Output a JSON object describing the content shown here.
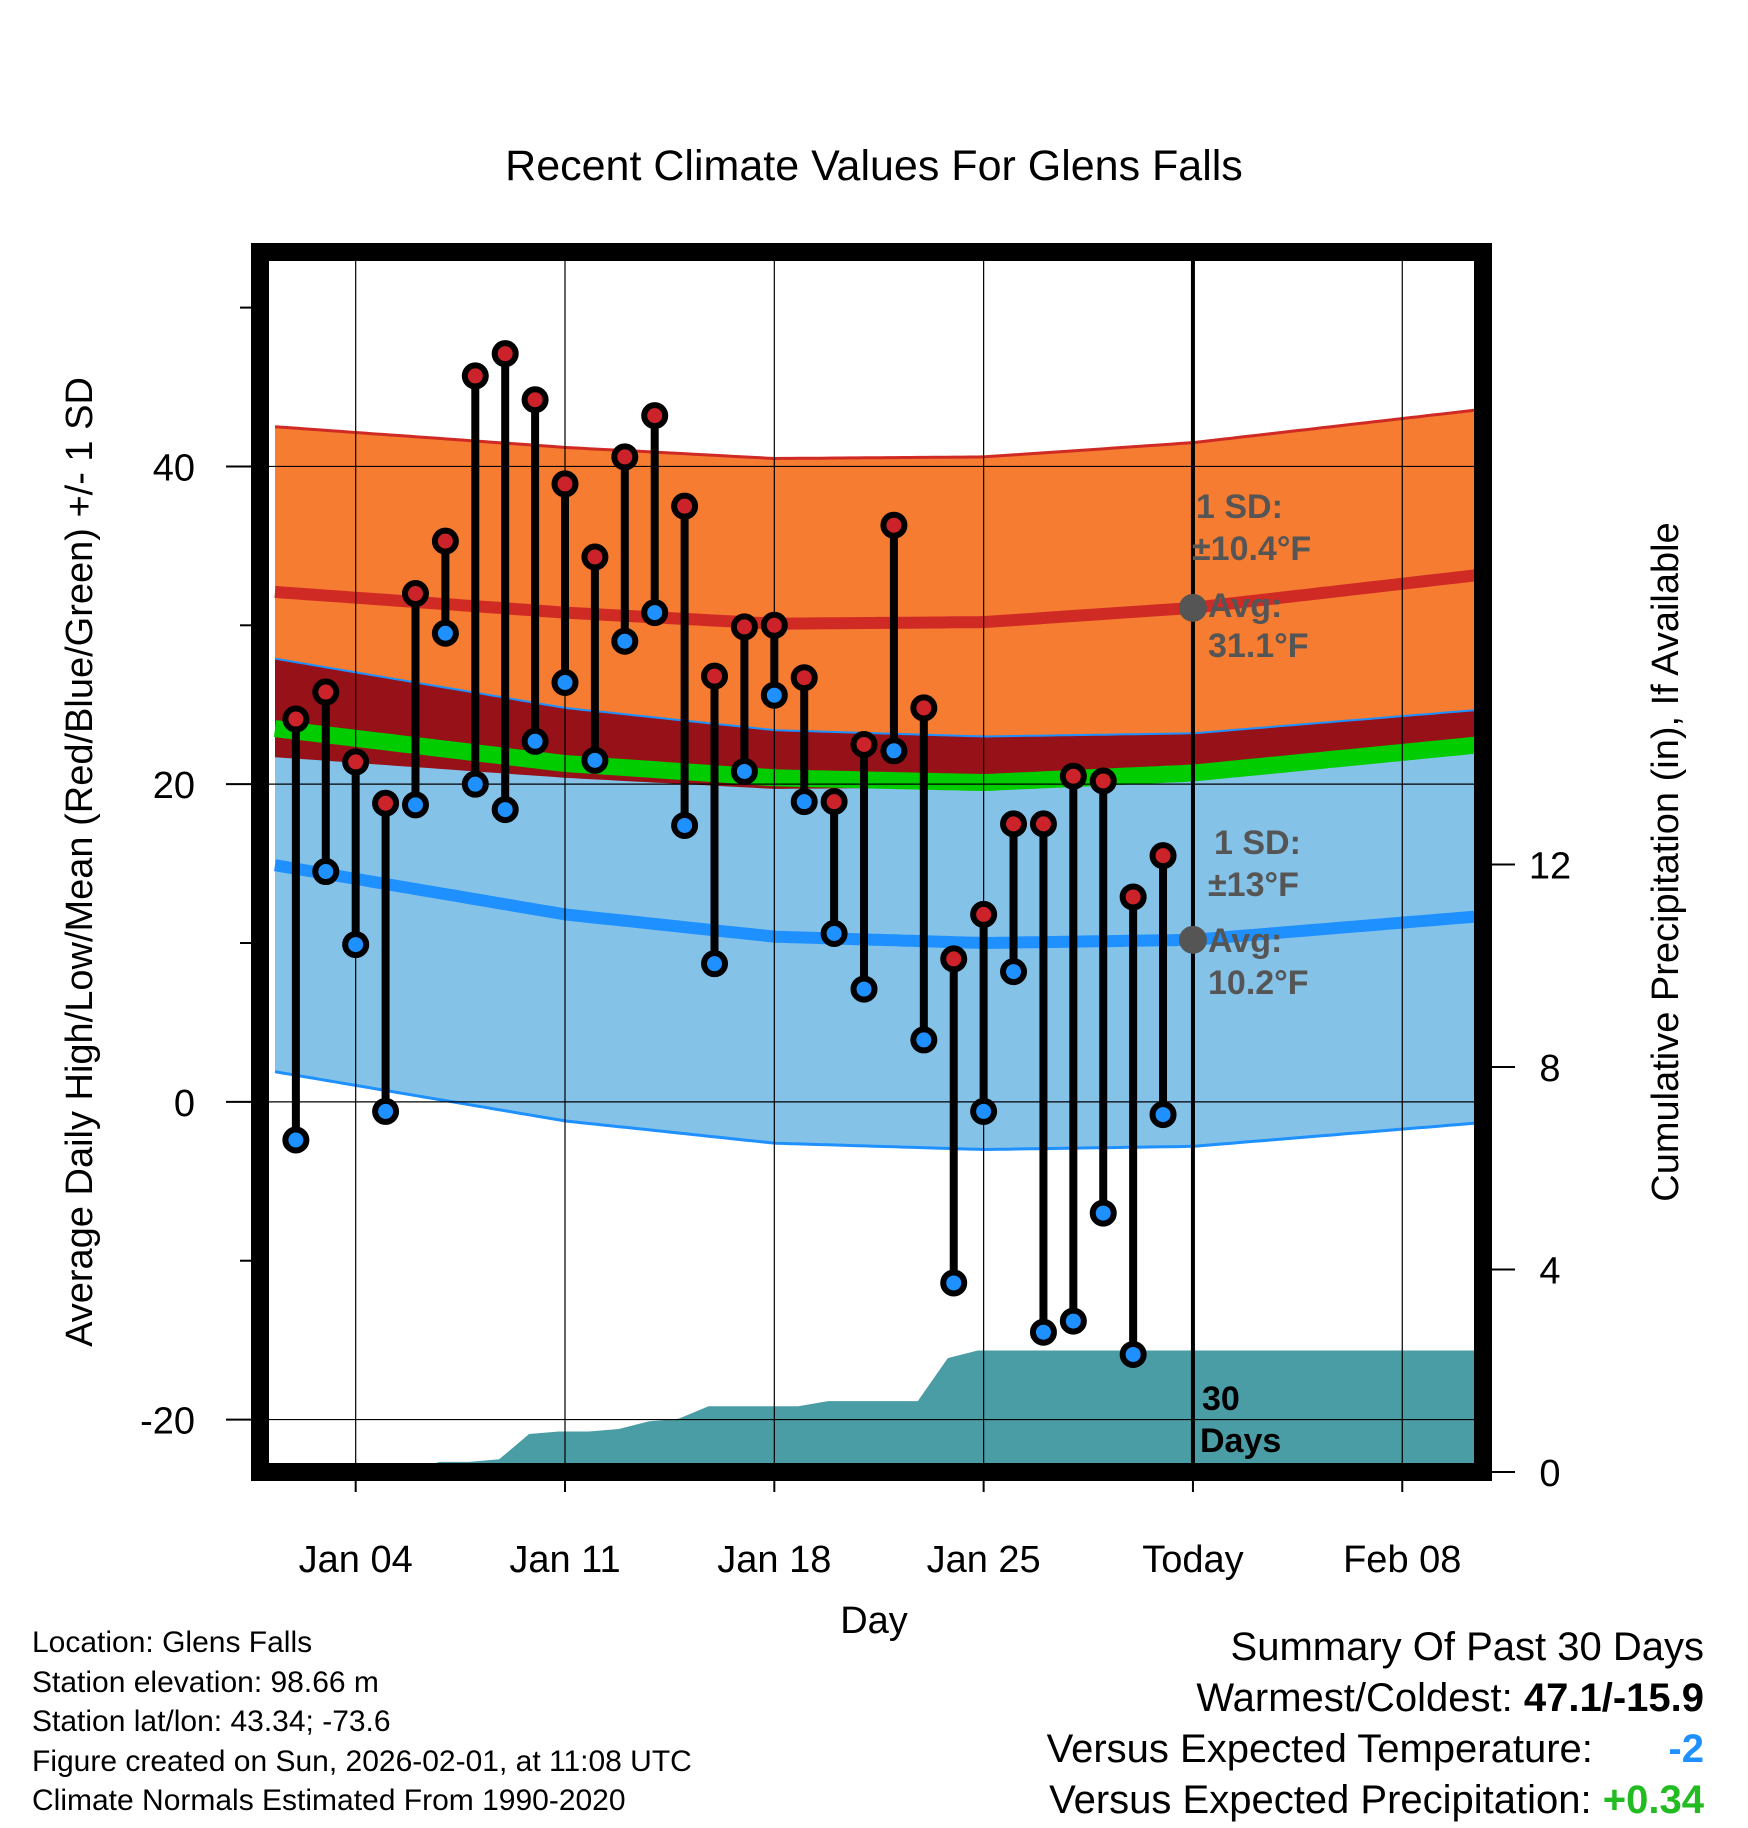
{
  "chart_data": {
    "type": "line",
    "title": "Recent Climate Values For Glens Falls",
    "xlabel": "Day",
    "ylabel_left": "Average Daily High/Low/Mean (Red/Blue/Green) +/- 1 SD",
    "ylabel_right": "Cumulative Precipitation (in), If Available",
    "x_tick_labels": [
      "Jan 04",
      "Jan 11",
      "Jan 18",
      "Jan 25",
      "Today",
      "Feb 08"
    ],
    "x_tick_days": [
      4,
      11,
      18,
      25,
      32,
      39
    ],
    "xlim_days": [
      0.8,
      41.7
    ],
    "today_day": 32,
    "ylim_left": [
      -23.3,
      53.5
    ],
    "y_ticks_left": [
      -20,
      0,
      20,
      40
    ],
    "ylim_right": [
      0,
      24.1
    ],
    "y_ticks_right": [
      0,
      4,
      8,
      12
    ],
    "days": [
      2,
      3,
      4,
      5,
      6,
      7,
      8,
      9,
      10,
      11,
      12,
      13,
      14,
      15,
      16,
      17,
      18,
      19,
      20,
      21,
      22,
      23,
      24,
      25,
      26,
      27,
      28,
      29,
      30,
      31
    ],
    "highs": [
      24.1,
      25.8,
      21.4,
      18.8,
      32.0,
      35.3,
      45.7,
      47.1,
      44.2,
      38.9,
      34.3,
      40.6,
      43.2,
      37.5,
      26.8,
      29.9,
      30.0,
      26.7,
      18.9,
      22.5,
      36.3,
      24.8,
      9.0,
      11.8,
      17.5,
      17.5,
      20.5,
      20.2,
      12.9,
      15.5
    ],
    "lows": [
      -2.4,
      14.5,
      9.9,
      -0.6,
      18.7,
      29.5,
      20.0,
      18.4,
      22.7,
      26.4,
      21.5,
      29.0,
      30.8,
      17.4,
      8.7,
      20.8,
      25.6,
      18.9,
      10.6,
      7.1,
      22.1,
      3.9,
      -11.4,
      -0.6,
      8.2,
      -14.5,
      -13.8,
      -7.0,
      -15.9,
      -0.8
    ],
    "normals": {
      "day_points": [
        1.3,
        11,
        18,
        25,
        32,
        41.7
      ],
      "high_avg": [
        32.1,
        30.8,
        30.1,
        30.2,
        31.1,
        33.2
      ],
      "high_sd": 10.4,
      "low_avg": [
        14.9,
        11.8,
        10.4,
        10.0,
        10.2,
        11.7
      ],
      "low_sd": 13,
      "mean_avg": [
        23.5,
        21.3,
        20.4,
        20.1,
        20.7,
        22.5
      ]
    },
    "precip_days": [
      1.3,
      2,
      3,
      4,
      5,
      5.8,
      6.8,
      7.8,
      8.8,
      9.8,
      10.8,
      11.8,
      12.8,
      13.8,
      14.8,
      15.8,
      16.8,
      17.8,
      18.8,
      19.8,
      20.8,
      21.8,
      22.8,
      23.8,
      24.8,
      25.8,
      26.8,
      27.8,
      28.8,
      29.8,
      30.8,
      31.8,
      32.8,
      33.8,
      34.8,
      35.8,
      36.8,
      37.8,
      38.8,
      39.8,
      40.8,
      41.7
    ],
    "precip_cum": [
      0,
      0,
      0,
      0,
      0,
      0,
      0.2,
      0.2,
      0.25,
      0.75,
      0.8,
      0.8,
      0.85,
      1.0,
      1.05,
      1.3,
      1.3,
      1.3,
      1.3,
      1.4,
      1.4,
      1.4,
      1.4,
      2.25,
      2.4,
      2.4,
      2.4,
      2.4,
      2.4,
      2.4,
      2.4,
      2.4,
      2.4,
      2.4,
      2.4,
      2.4,
      2.4,
      2.4,
      2.4,
      2.4,
      2.4,
      2.4
    ],
    "annotations": {
      "high_sd_line1": "1 SD:",
      "high_sd_line2": "±10.4°F",
      "high_avg_line1": "Avg:",
      "high_avg_line2": "31.1°F",
      "low_sd_line1": "1 SD:",
      "low_sd_line2": "±13°F",
      "low_avg_line1": "Avg:",
      "low_avg_line2": "10.2°F",
      "days_line1": "30",
      "days_line2": "Days"
    },
    "colors": {
      "high_band": "#f57c30",
      "high_line": "#d02a25",
      "low_band": "#85c2e8",
      "low_line": "#1e90ff",
      "overlap": "#961218",
      "mean": "#00cc00",
      "precip": "#4a9ca5",
      "point_high": "#cc2229",
      "point_low": "#1e90ff",
      "annotation": "#555555"
    }
  },
  "footer": {
    "location": "Location: Glens Falls",
    "elevation": "Station elevation: 98.66 m",
    "latlon": "Station lat/lon: 43.34; -73.6",
    "created": "Figure created on Sun, 2026-02-01, at 11:08 UTC",
    "normals": "Climate Normals Estimated From 1990-2020"
  },
  "summary": {
    "title": "Summary Of Past 30 Days",
    "warmest_label": "Warmest/Coldest:",
    "warmest_value": "47.1/-15.9",
    "temp_label": "Versus Expected Temperature:",
    "temp_value": "-2",
    "precip_label": "Versus Expected Precipitation:",
    "precip_value": "+0.34"
  }
}
